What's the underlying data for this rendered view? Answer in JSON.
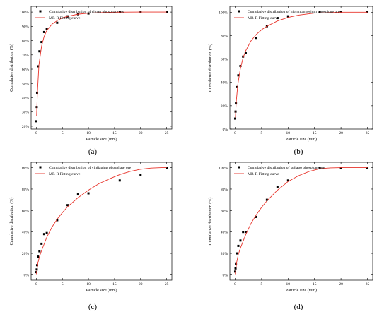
{
  "chart_data": [
    {
      "type": "scatter",
      "panel_label": "(a)",
      "xlabel": "Particle size (mm)",
      "ylabel": "Cumulative distribution (%)",
      "xlim": [
        -1,
        26
      ],
      "ylim": [
        18,
        104
      ],
      "xticks": [
        0,
        5,
        10,
        15,
        20,
        25
      ],
      "yticks": [
        20,
        30,
        40,
        50,
        60,
        70,
        80,
        90,
        100
      ],
      "y_unit": "%",
      "grid": false,
      "legend_position": "top-left",
      "series": [
        {
          "name": "Cumulative distribution of chuan phosphate ore",
          "kind": "points",
          "color": "#000000",
          "x": [
            0,
            0.075,
            0.15,
            0.3,
            0.6,
            1.0,
            1.5,
            2.0,
            4.0,
            6.0,
            8.0,
            10.0,
            16.0,
            20.0,
            25.0
          ],
          "y": [
            23.5,
            33.5,
            43.5,
            62,
            72.5,
            79,
            86,
            88,
            92.5,
            97,
            98.5,
            99,
            100,
            100,
            100
          ]
        },
        {
          "name": "MR-R Fitting curve",
          "kind": "line",
          "color": "#e8332a",
          "x": [
            0.05,
            0.2,
            0.5,
            1,
            1.5,
            2,
            3,
            4,
            5,
            6,
            8,
            10,
            12,
            15,
            20,
            25
          ],
          "y": [
            27,
            43,
            63,
            76,
            83,
            87,
            91.5,
            94,
            96,
            97,
            98.5,
            99.2,
            99.6,
            99.9,
            100,
            100
          ]
        }
      ]
    },
    {
      "type": "scatter",
      "panel_label": "(b)",
      "xlabel": "Particle size (mm)",
      "ylabel": "Cumulative distribution (%)",
      "xlim": [
        -1,
        26
      ],
      "ylim": [
        0,
        105
      ],
      "xticks": [
        0,
        5,
        10,
        15,
        20,
        25
      ],
      "yticks": [
        0,
        20,
        40,
        60,
        80,
        100
      ],
      "y_unit": "%",
      "grid": false,
      "legend_position": "top-left",
      "series": [
        {
          "name": "Cumulative distribution of high magnesium phosphate ore",
          "kind": "points",
          "color": "#000000",
          "x": [
            0,
            0.075,
            0.15,
            0.3,
            0.6,
            1.0,
            1.5,
            2.0,
            4.0,
            6.0,
            8.0,
            10.0,
            16.0,
            20.0,
            25.0
          ],
          "y": [
            9,
            15,
            22,
            36,
            46,
            54,
            62,
            65,
            78,
            88,
            95,
            96.5,
            100,
            100,
            100
          ]
        },
        {
          "name": "MR-R Fitting curve",
          "kind": "line",
          "color": "#e8332a",
          "x": [
            0.05,
            0.2,
            0.5,
            1,
            1.5,
            2,
            3,
            4,
            5,
            6,
            8,
            10,
            12,
            15,
            20,
            25
          ],
          "y": [
            10,
            23,
            38,
            52,
            61,
            67,
            75.5,
            81,
            85,
            88,
            92.5,
            95.5,
            97.5,
            99.2,
            100,
            100
          ]
        }
      ]
    },
    {
      "type": "scatter",
      "panel_label": "(c)",
      "xlabel": "Particle size (mm)",
      "ylabel": "Cumulative distribution (%)",
      "xlim": [
        -1,
        26
      ],
      "ylim": [
        -5,
        105
      ],
      "xticks": [
        0,
        5,
        10,
        15,
        20,
        25
      ],
      "yticks": [
        0,
        20,
        40,
        60,
        80,
        100
      ],
      "y_unit": "%",
      "grid": false,
      "legend_position": "top-left",
      "series": [
        {
          "name": "Cumulative distribution of yinjiaping phosphate ore",
          "kind": "points",
          "color": "#000000",
          "x": [
            0,
            0.075,
            0.15,
            0.3,
            0.6,
            1.0,
            1.5,
            2.0,
            4.0,
            6.0,
            8.0,
            10.0,
            16.0,
            20.0,
            25.0
          ],
          "y": [
            2.5,
            5,
            9,
            17,
            22,
            29,
            38,
            39,
            51,
            65,
            75,
            76,
            88,
            93,
            100
          ]
        },
        {
          "name": "MR-R Fitting curve",
          "kind": "line",
          "color": "#e8332a",
          "x": [
            0,
            0.3,
            0.6,
            1,
            2,
            3,
            4,
            5,
            6,
            8,
            10,
            12,
            14,
            16,
            18,
            20,
            22,
            24,
            25
          ],
          "y": [
            0,
            11,
            17,
            22.5,
            35,
            44.5,
            52,
            58,
            63.5,
            72,
            79,
            85,
            89.5,
            93.5,
            96.5,
            98.5,
            99.6,
            100,
            100
          ]
        }
      ]
    },
    {
      "type": "scatter",
      "panel_label": "(d)",
      "xlabel": "Particle size (mm)",
      "ylabel": "Cumulative distribution (%)",
      "xlim": [
        -1,
        26
      ],
      "ylim": [
        -5,
        105
      ],
      "xticks": [
        0,
        5,
        10,
        15,
        20,
        25
      ],
      "yticks": [
        0,
        20,
        40,
        60,
        80,
        100
      ],
      "y_unit": "%",
      "grid": false,
      "legend_position": "top-left",
      "series": [
        {
          "name": "Cumulative distribution of sujiapo phosphate ore",
          "kind": "points",
          "color": "#000000",
          "x": [
            0,
            0.075,
            0.15,
            0.3,
            0.6,
            1.0,
            1.5,
            2.0,
            4.0,
            6.0,
            8.0,
            10.0,
            16.0,
            20.0,
            25.0
          ],
          "y": [
            3,
            6,
            10,
            20,
            27,
            32,
            40,
            40,
            54,
            70,
            82,
            88,
            99.5,
            100,
            100
          ]
        },
        {
          "name": "MR-R Fitting curve",
          "kind": "line",
          "color": "#e8332a",
          "x": [
            0,
            0.3,
            0.6,
            1,
            2,
            3,
            4,
            5,
            6,
            8,
            10,
            12,
            14,
            16,
            18,
            20,
            22,
            25
          ],
          "y": [
            0,
            12,
            19,
            25,
            37.5,
            48,
            56,
            63,
            69,
            79,
            87,
            92.5,
            96.5,
            99,
            99.8,
            100,
            100,
            100
          ]
        }
      ]
    }
  ]
}
